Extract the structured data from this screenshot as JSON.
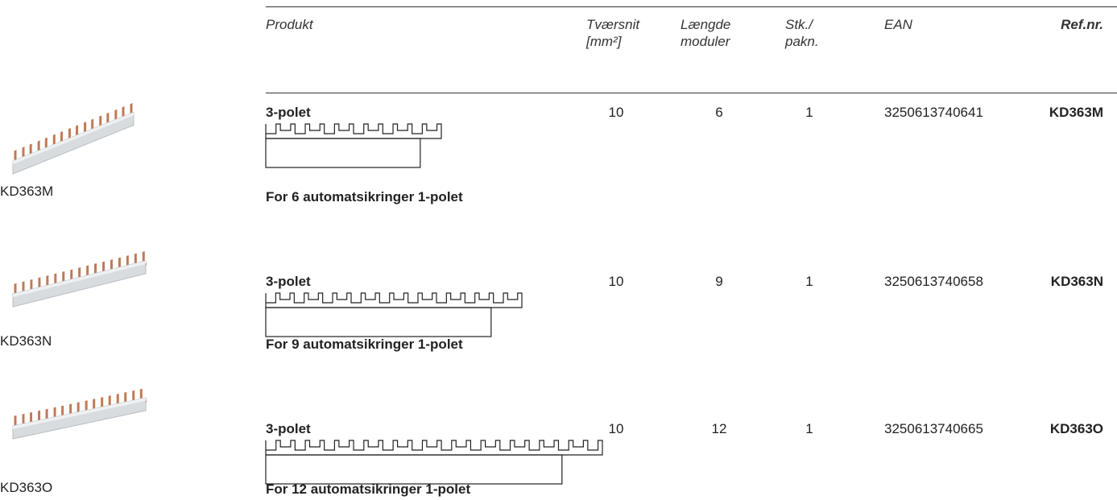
{
  "header": {
    "columns": [
      [
        "Produkt"
      ],
      [
        "Tværsnit",
        "[mm²]"
      ],
      [
        "Længde",
        "moduler"
      ],
      [
        "Stk./",
        "pakn."
      ],
      [
        "EAN"
      ],
      [
        "Ref.nr."
      ]
    ]
  },
  "rows": [
    {
      "caption": "KD363M",
      "title": "3-polet",
      "note": "For 6 automatsikringer  1-polet",
      "cells": [
        "10",
        "6",
        "1",
        "3250613740641",
        "KD363M"
      ]
    },
    {
      "caption": "KD363N",
      "title": "3-polet",
      "note": "For 9 automatsikringer  1-polet",
      "cells": [
        "10",
        "9",
        "1",
        "3250613740658",
        "KD363N"
      ]
    },
    {
      "caption": "KD363O",
      "title": "3-polet",
      "note": "For 12 automatsikringer  1-polet",
      "cells": [
        "10",
        "12",
        "1",
        "3250613740665",
        "KD363O"
      ]
    }
  ]
}
